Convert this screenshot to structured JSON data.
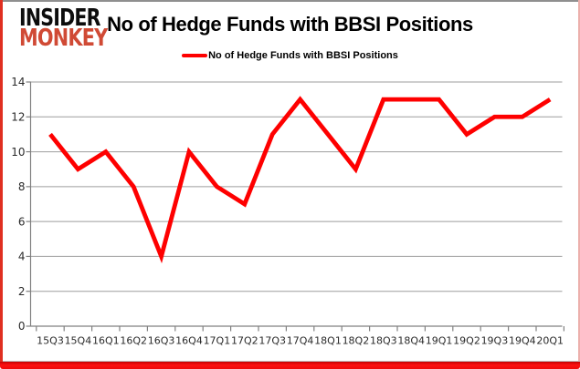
{
  "logo": {
    "line1": "INSIDER",
    "line2": "MONKEY",
    "color1": "#0d0d0d",
    "color2": "#d04a35"
  },
  "title": "No of Hedge Funds with BBSI Positions",
  "legend": {
    "label": "No of Hedge Funds with BBSI Positions",
    "line_color": "#fe0000"
  },
  "chart_data": {
    "type": "line",
    "title": "No of Hedge Funds with BBSI Positions",
    "series_name": "No of Hedge Funds with BBSI Positions",
    "categories": [
      "15Q3",
      "15Q4",
      "16Q1",
      "16Q2",
      "16Q3",
      "16Q4",
      "17Q1",
      "17Q2",
      "17Q3",
      "17Q4",
      "18Q1",
      "18Q2",
      "18Q3",
      "18Q4",
      "19Q1",
      "19Q2",
      "19Q3",
      "19Q4",
      "20Q1"
    ],
    "values": [
      11,
      9,
      10,
      8,
      4,
      10,
      8,
      7,
      11,
      13,
      11,
      9,
      13,
      13,
      13,
      11,
      12,
      12,
      13
    ],
    "xlabel": "",
    "ylabel": "",
    "ylim": [
      0,
      14
    ],
    "ytick_step": 2,
    "grid": true,
    "legend_position": "top-center",
    "line_color": "#fe0000",
    "grid_color": "#9e9e9e",
    "axis_color": "#808080",
    "tick_label_color": "#2a2a2a"
  }
}
